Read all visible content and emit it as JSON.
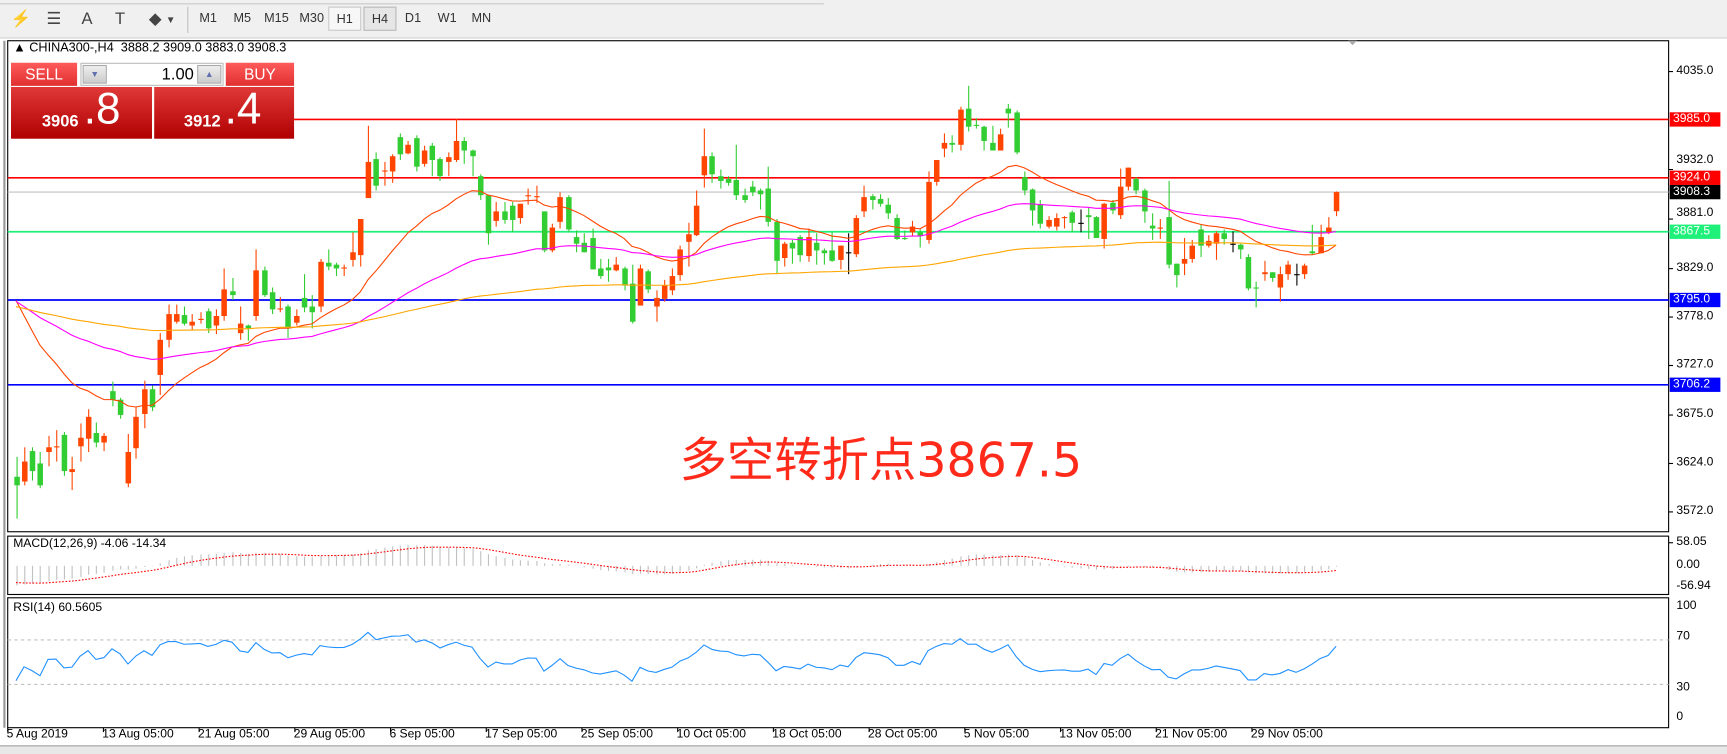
{
  "toolbar": {
    "icons": [
      "elliott-wave-icon",
      "fibonacci-icon",
      "text-icon",
      "text-label-icon",
      "arrows-icon"
    ],
    "icon_glyphs": [
      "⚡",
      "☰",
      "A",
      "T",
      "◆"
    ],
    "timeframes": [
      "M1",
      "M5",
      "M15",
      "M30",
      "H1",
      "H4",
      "D1",
      "W1",
      "MN"
    ],
    "pressed": "H1",
    "active": "H4"
  },
  "chart": {
    "header": "CHINA300-,H4  3888.2 3909.0 3883.0 3908.3",
    "symbol": "CHINA300-",
    "timeframe": "H4",
    "ohlc": [
      3888.2,
      3909.0,
      3883.0,
      3908.3
    ]
  },
  "trade_panel": {
    "sell_label": "SELL",
    "buy_label": "BUY",
    "lot": "1.00",
    "sell_price_main": "3906",
    "sell_price_big": ".8",
    "buy_price_main": "3912",
    "buy_price_big": ".4"
  },
  "annotation": "多空转折点3867.5",
  "price_axis": [
    "4035.0",
    "3932.0",
    "3881.0",
    "3829.0",
    "3778.0",
    "3727.0",
    "3675.0",
    "3624.0",
    "3572.0"
  ],
  "levels": [
    {
      "price": 3985.0,
      "label": "3985.0",
      "color": "#ff0000"
    },
    {
      "price": 3924.0,
      "label": "3924.0",
      "color": "#ff0000"
    },
    {
      "price": 3908.3,
      "label": "3908.3",
      "color": "#000000",
      "line": "#c0c0c0"
    },
    {
      "price": 3867.5,
      "label": "3867.5",
      "color": "#1ef07a"
    },
    {
      "price": 3795.0,
      "label": "3795.0",
      "color": "#0000ff"
    },
    {
      "price": 3706.2,
      "label": "3706.2",
      "color": "#0000ff"
    }
  ],
  "colors": {
    "bull": "#ff4500",
    "bear": "#32cd32",
    "ma_fast": "#ff4500",
    "ma_mid": "#ff00ff",
    "ma_slow": "#ffa500",
    "rsi": "#1e90ff",
    "macd_signal": "#ff0000",
    "macd_hist": "#c0c0c0"
  },
  "macd": {
    "title": "MACD(12,26,9) -4.06 -14.34",
    "axis": [
      "58.05",
      "0.00",
      "-56.94"
    ]
  },
  "rsi": {
    "title": "RSI(14) 60.5605",
    "axis": [
      "100",
      "70",
      "30",
      "0"
    ]
  },
  "dates": [
    "5 Aug 2019",
    "13 Aug 05:00",
    "21 Aug 05:00",
    "29 Aug 05:00",
    "6 Sep 05:00",
    "17 Sep 05:00",
    "25 Sep 05:00",
    "10 Oct 05:00",
    "18 Oct 05:00",
    "28 Oct 05:00",
    "5 Nov 05:00",
    "13 Nov 05:00",
    "21 Nov 05:00",
    "29 Nov 05:00"
  ],
  "candles": [
    [
      3609,
      3630,
      3565,
      3600
    ],
    [
      3604,
      3640,
      3600,
      3625
    ],
    [
      3636,
      3640,
      3605,
      3615
    ],
    [
      3623,
      3635,
      3597,
      3600
    ],
    [
      3635,
      3652,
      3620,
      3640
    ],
    [
      3640,
      3658,
      3625,
      3641
    ],
    [
      3653,
      3656,
      3610,
      3615
    ],
    [
      3614,
      3630,
      3595,
      3617
    ],
    [
      3641,
      3665,
      3625,
      3650
    ],
    [
      3649,
      3680,
      3635,
      3672
    ],
    [
      3655,
      3666,
      3640,
      3645
    ],
    [
      3645,
      3655,
      3636,
      3652
    ],
    [
      3699,
      3709,
      3683,
      3690
    ],
    [
      3690,
      3692,
      3670,
      3674
    ],
    [
      3602,
      3654,
      3598,
      3635
    ],
    [
      3639,
      3682,
      3628,
      3672
    ],
    [
      3675,
      3710,
      3660,
      3701
    ],
    [
      3701,
      3705,
      3678,
      3682
    ],
    [
      3716,
      3760,
      3695,
      3753
    ],
    [
      3753,
      3790,
      3745,
      3780
    ],
    [
      3772,
      3790,
      3770,
      3780
    ],
    [
      3779,
      3788,
      3768,
      3770
    ],
    [
      3768,
      3780,
      3763,
      3772
    ],
    [
      3774,
      3782,
      3770,
      3775
    ],
    [
      3783,
      3786,
      3760,
      3765
    ],
    [
      3768,
      3785,
      3759,
      3778
    ],
    [
      3778,
      3828,
      3773,
      3806
    ],
    [
      3804,
      3818,
      3795,
      3800
    ],
    [
      3760,
      3788,
      3753,
      3770
    ],
    [
      3768,
      3769,
      3752,
      3765
    ],
    [
      3778,
      3848,
      3773,
      3826
    ],
    [
      3826,
      3830,
      3798,
      3800
    ],
    [
      3803,
      3808,
      3780,
      3785
    ],
    [
      3785,
      3798,
      3782,
      3786
    ],
    [
      3788,
      3790,
      3755,
      3765
    ],
    [
      3771,
      3785,
      3768,
      3778
    ],
    [
      3797,
      3822,
      3782,
      3787
    ],
    [
      3788,
      3800,
      3765,
      3782
    ],
    [
      3788,
      3838,
      3782,
      3835
    ],
    [
      3834,
      3848,
      3826,
      3830
    ],
    [
      3832,
      3834,
      3820,
      3828
    ],
    [
      3828,
      3832,
      3820,
      3829
    ],
    [
      3837,
      3866,
      3830,
      3845
    ],
    [
      3842,
      3880,
      3830,
      3880
    ],
    [
      3902,
      3978,
      3902,
      3940
    ],
    [
      3943,
      3950,
      3910,
      3915
    ],
    [
      3930,
      3940,
      3915,
      3931
    ],
    [
      3930,
      3948,
      3918,
      3946
    ],
    [
      3966,
      3970,
      3942,
      3948
    ],
    [
      3949,
      3962,
      3948,
      3958
    ],
    [
      3965,
      3968,
      3930,
      3935
    ],
    [
      3938,
      3957,
      3935,
      3952
    ],
    [
      3957,
      3960,
      3925,
      3942
    ],
    [
      3943,
      3945,
      3920,
      3925
    ],
    [
      3940,
      3950,
      3925,
      3945
    ],
    [
      3942,
      3985,
      3940,
      3962
    ],
    [
      3962,
      3966,
      3938,
      3952
    ],
    [
      3952,
      3953,
      3925,
      3946
    ],
    [
      3925,
      3927,
      3900,
      3905
    ],
    [
      3905,
      3905,
      3853,
      3865
    ],
    [
      3878,
      3898,
      3872,
      3888
    ],
    [
      3888,
      3898,
      3875,
      3879
    ],
    [
      3894,
      3898,
      3866,
      3879
    ],
    [
      3881,
      3896,
      3875,
      3896
    ],
    [
      3904,
      3912,
      3895,
      3905
    ],
    [
      3903,
      3915,
      3897,
      3904
    ],
    [
      3888,
      3888,
      3845,
      3847
    ],
    [
      3847,
      3875,
      3845,
      3871
    ],
    [
      3877,
      3908,
      3870,
      3903
    ],
    [
      3903,
      3905,
      3866,
      3869
    ],
    [
      3861,
      3868,
      3845,
      3854
    ],
    [
      3855,
      3865,
      3845,
      3845
    ],
    [
      3860,
      3870,
      3827,
      3827
    ],
    [
      3828,
      3838,
      3817,
      3820
    ],
    [
      3829,
      3838,
      3814,
      3826
    ],
    [
      3826,
      3840,
      3825,
      3832
    ],
    [
      3828,
      3830,
      3805,
      3810
    ],
    [
      3812,
      3832,
      3770,
      3772
    ],
    [
      3789,
      3832,
      3789,
      3828
    ],
    [
      3825,
      3827,
      3802,
      3806
    ],
    [
      3788,
      3805,
      3772,
      3797
    ],
    [
      3796,
      3816,
      3793,
      3810
    ],
    [
      3805,
      3828,
      3800,
      3820
    ],
    [
      3821,
      3852,
      3815,
      3848
    ],
    [
      3856,
      3876,
      3830,
      3864
    ],
    [
      3863,
      3910,
      3862,
      3894
    ],
    [
      3926,
      3975,
      3913,
      3946
    ],
    [
      3946,
      3950,
      3918,
      3927
    ],
    [
      3925,
      3932,
      3912,
      3920
    ],
    [
      3922,
      3925,
      3915,
      3918
    ],
    [
      3921,
      3958,
      3900,
      3905
    ],
    [
      3905,
      3912,
      3897,
      3900
    ],
    [
      3914,
      3920,
      3904,
      3908
    ],
    [
      3910,
      3912,
      3890,
      3906
    ],
    [
      3912,
      3935,
      3872,
      3877
    ],
    [
      3877,
      3880,
      3822,
      3836
    ],
    [
      3839,
      3856,
      3830,
      3854
    ],
    [
      3855,
      3858,
      3833,
      3849
    ],
    [
      3861,
      3863,
      3835,
      3842
    ],
    [
      3841,
      3870,
      3835,
      3861
    ],
    [
      3855,
      3865,
      3832,
      3847
    ],
    [
      3847,
      3849,
      3832,
      3844
    ],
    [
      3847,
      3866,
      3835,
      3836
    ],
    [
      3837,
      3852,
      3827,
      3852
    ],
    [
      3845,
      3865,
      3822,
      3845
    ],
    [
      3843,
      3884,
      3840,
      3881
    ],
    [
      3888,
      3915,
      3882,
      3903
    ],
    [
      3904,
      3906,
      3890,
      3900
    ],
    [
      3901,
      3906,
      3893,
      3896
    ],
    [
      3895,
      3902,
      3880,
      3886
    ],
    [
      3881,
      3885,
      3858,
      3859
    ],
    [
      3860,
      3868,
      3858,
      3859
    ],
    [
      3866,
      3878,
      3862,
      3872
    ],
    [
      3866,
      3869,
      3850,
      3862
    ],
    [
      3858,
      3930,
      3854,
      3919
    ],
    [
      3919,
      3942,
      3915,
      3942
    ],
    [
      3954,
      3970,
      3945,
      3960
    ],
    [
      3960,
      3968,
      3950,
      3958
    ],
    [
      3958,
      3998,
      3952,
      3995
    ],
    [
      3996,
      4020,
      3972,
      3977
    ],
    [
      3979,
      3986,
      3975,
      3978
    ],
    [
      3977,
      3978,
      3952,
      3962
    ],
    [
      3960,
      3978,
      3952,
      3952
    ],
    [
      3952,
      3975,
      3952,
      3969
    ],
    [
      3996,
      4001,
      3976,
      3991
    ],
    [
      3992,
      3994,
      3948,
      3950
    ],
    [
      3924,
      3930,
      3905,
      3910
    ],
    [
      3911,
      3912,
      3873,
      3889
    ],
    [
      3895,
      3900,
      3870,
      3875
    ],
    [
      3872,
      3883,
      3870,
      3879
    ],
    [
      3872,
      3886,
      3868,
      3881
    ],
    [
      3881,
      3883,
      3870,
      3882
    ],
    [
      3887,
      3889,
      3866,
      3876
    ],
    [
      3876,
      3890,
      3866,
      3876
    ],
    [
      3884,
      3892,
      3859,
      3882
    ],
    [
      3882,
      3883,
      3860,
      3860
    ],
    [
      3859,
      3897,
      3849,
      3896
    ],
    [
      3897,
      3900,
      3885,
      3889
    ],
    [
      3884,
      3933,
      3880,
      3914
    ],
    [
      3914,
      3934,
      3910,
      3934
    ],
    [
      3922,
      3924,
      3906,
      3910
    ],
    [
      3910,
      3912,
      3876,
      3888
    ],
    [
      3873,
      3886,
      3858,
      3870
    ],
    [
      3870,
      3880,
      3859,
      3871
    ],
    [
      3882,
      3920,
      3828,
      3832
    ],
    [
      3833,
      3833,
      3808,
      3821
    ],
    [
      3833,
      3860,
      3821,
      3838
    ],
    [
      3838,
      3858,
      3834,
      3852
    ],
    [
      3869,
      3874,
      3840,
      3852
    ],
    [
      3852,
      3863,
      3850,
      3857
    ],
    [
      3854,
      3867,
      3837,
      3865
    ],
    [
      3865,
      3869,
      3853,
      3859
    ],
    [
      3854,
      3867,
      3845,
      3854
    ],
    [
      3853,
      3854,
      3838,
      3848
    ],
    [
      3840,
      3843,
      3805,
      3807
    ],
    [
      3808,
      3814,
      3787,
      3807
    ],
    [
      3822,
      3836,
      3815,
      3824
    ],
    [
      3824,
      3824,
      3814,
      3818
    ],
    [
      3808,
      3830,
      3793,
      3822
    ],
    [
      3822,
      3836,
      3816,
      3832
    ],
    [
      3822,
      3833,
      3810,
      3822
    ],
    [
      3822,
      3833,
      3817,
      3831
    ],
    [
      3846,
      3874,
      3842,
      3844
    ],
    [
      3844,
      3874,
      3844,
      3861
    ],
    [
      3866,
      3882,
      3864,
      3871
    ],
    [
      3888.2,
      3909.0,
      3883.0,
      3908.3
    ]
  ]
}
